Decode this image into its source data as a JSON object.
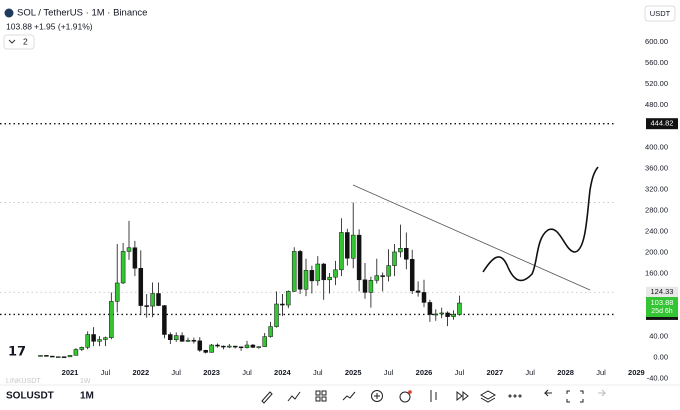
{
  "header": {
    "symbol": "SOL / TetherUS · 1M · Binance",
    "price": "103.88",
    "change": "+1.95 (+1.91%)",
    "indicators": "2",
    "currency": "USDT"
  },
  "chart_data": {
    "type": "candlestick",
    "x": [
      "2020-08",
      "2020-09",
      "2020-10",
      "2020-11",
      "2020-12",
      "2021-01",
      "2021-02",
      "2021-03",
      "2021-04",
      "2021-05",
      "2021-06",
      "2021-07",
      "2021-08",
      "2021-09",
      "2021-10",
      "2021-11",
      "2021-12",
      "2022-01",
      "2022-02",
      "2022-03",
      "2022-04",
      "2022-05",
      "2022-06",
      "2022-07",
      "2022-08",
      "2022-09",
      "2022-10",
      "2022-11",
      "2022-12",
      "2023-01",
      "2023-02",
      "2023-03",
      "2023-04",
      "2023-05",
      "2023-06",
      "2023-07",
      "2023-08",
      "2023-09",
      "2023-10",
      "2023-11",
      "2023-12",
      "2024-01",
      "2024-02",
      "2024-03",
      "2024-04",
      "2024-05",
      "2024-06",
      "2024-07",
      "2024-08",
      "2024-09",
      "2024-10",
      "2024-11",
      "2024-12",
      "2025-01",
      "2025-02",
      "2025-03",
      "2025-04",
      "2025-05",
      "2025-06",
      "2025-07",
      "2025-08",
      "2025-09",
      "2025-10",
      "2025-11",
      "2025-12",
      "2026-01",
      "2026-02",
      "2026-03",
      "2026-04",
      "2026-05",
      "2026-06",
      "2026-07"
    ],
    "open": [
      2.8,
      4.3,
      3.0,
      1.7,
      1.8,
      1.5,
      4.3,
      15.5,
      19.6,
      44,
      31,
      34.5,
      38,
      107,
      142,
      202,
      209,
      170,
      99,
      98,
      122,
      99,
      44,
      34,
      42,
      31,
      33,
      32,
      14,
      10,
      24,
      22,
      21,
      22,
      20.6,
      19,
      24,
      19.5,
      21,
      40,
      59,
      102,
      100,
      126,
      202,
      130,
      166,
      146,
      178,
      148,
      153,
      167,
      238,
      189,
      233,
      148,
      124,
      147,
      156,
      155,
      175,
      201,
      208,
      187,
      127,
      124,
      105,
      82,
      83,
      85,
      78,
      82
    ],
    "high": [
      4.9,
      4.8,
      3.2,
      2.4,
      2.3,
      4.7,
      18,
      21,
      50,
      58,
      41,
      40,
      124,
      216,
      218,
      260,
      222,
      204,
      121,
      143,
      143,
      100,
      48,
      48,
      48,
      38,
      38,
      39,
      15,
      26,
      27,
      23,
      26,
      22.5,
      20.7,
      32,
      26,
      21.5,
      47,
      68,
      126,
      121,
      128,
      210,
      205,
      188,
      175,
      193,
      180,
      161,
      184,
      265,
      245,
      295,
      244,
      180,
      154,
      188,
      162,
      206,
      216,
      253,
      238,
      205,
      145,
      148,
      110,
      92,
      95,
      88,
      90,
      118
    ],
    "low": [
      2.6,
      2.4,
      1.2,
      1.0,
      1.4,
      1.5,
      4.2,
      12.5,
      16,
      22,
      22,
      22,
      35,
      86,
      140,
      186,
      155,
      81,
      76,
      77,
      98,
      37,
      26,
      30,
      30,
      30,
      27,
      11,
      8,
      9.6,
      19,
      15.8,
      18,
      17.5,
      12.8,
      17.5,
      18,
      17,
      21,
      38,
      57,
      79,
      94,
      125,
      121,
      117,
      122,
      137,
      110,
      122,
      138,
      155,
      175,
      170,
      126,
      112,
      95,
      141,
      126,
      145,
      155,
      191,
      168,
      121,
      116,
      96,
      68,
      70,
      75,
      60,
      72,
      80
    ],
    "close": [
      4.3,
      3.0,
      1.7,
      1.8,
      1.5,
      4.3,
      15.5,
      19.6,
      44,
      31,
      34.5,
      38,
      107,
      142,
      202,
      209,
      170,
      99,
      98,
      122,
      99,
      44,
      34,
      42,
      31,
      33,
      32,
      14,
      10,
      24,
      22,
      21,
      22,
      20.6,
      19,
      24,
      19.5,
      21,
      40,
      59,
      102,
      100,
      126,
      202,
      130,
      166,
      146,
      178,
      148,
      153,
      167,
      238,
      189,
      233,
      148,
      124,
      147,
      156,
      155,
      175,
      201,
      208,
      187,
      127,
      124,
      105,
      82,
      83,
      85,
      78,
      82,
      103.88
    ],
    "up_color": "#34c434",
    "down_color": "#111111",
    "ylim": [
      -52,
      680
    ],
    "yticks": [
      {
        "value": 600,
        "label": "600.00"
      },
      {
        "value": 560,
        "label": "560.00"
      },
      {
        "value": 520,
        "label": "520.00"
      },
      {
        "value": 480,
        "label": "480.00"
      },
      {
        "value": 400,
        "label": "400.00"
      },
      {
        "value": 360,
        "label": "360.00"
      },
      {
        "value": 320,
        "label": "320.00"
      },
      {
        "value": 280,
        "label": "280.00"
      },
      {
        "value": 240,
        "label": "240.00"
      },
      {
        "value": 200,
        "label": "200.00"
      },
      {
        "value": 160,
        "label": "160.00"
      },
      {
        "value": 40,
        "label": "40.00"
      },
      {
        "value": 0,
        "label": "0.00"
      },
      {
        "value": -40,
        "label": "-40.00"
      }
    ],
    "xticks": [
      {
        "value": "2021-01",
        "label": "2021"
      },
      {
        "value": "2021-07",
        "label": "Jul"
      },
      {
        "value": "2022-01",
        "label": "2022"
      },
      {
        "value": "2022-07",
        "label": "Jul"
      },
      {
        "value": "2023-01",
        "label": "2023"
      },
      {
        "value": "2023-07",
        "label": "Jul"
      },
      {
        "value": "2024-01",
        "label": "2024"
      },
      {
        "value": "2024-07",
        "label": "Jul"
      },
      {
        "value": "2025-01",
        "label": "2025"
      },
      {
        "value": "2025-07",
        "label": "Jul"
      },
      {
        "value": "2026-01",
        "label": "2026"
      },
      {
        "value": "2026-07",
        "label": "Jul"
      },
      {
        "value": "2027-01",
        "label": "2027"
      },
      {
        "value": "2027-07",
        "label": "Jul"
      },
      {
        "value": "2028-01",
        "label": "2028"
      },
      {
        "value": "2028-07",
        "label": "Jul"
      },
      {
        "value": "2029-01",
        "label": "2029"
      }
    ],
    "levels": [
      {
        "value": 444.82,
        "label": "444.82",
        "color": "#111111"
      },
      {
        "value": 295,
        "color": "#bbbbbb"
      },
      {
        "value": 124.33,
        "label": "124.33",
        "color": "#bbbbbb"
      },
      {
        "value": 82.19,
        "label": "82.19",
        "color": "#111111"
      }
    ],
    "last_price": {
      "value": 103.88,
      "label": "103.88",
      "countdown": "25d 6h"
    }
  },
  "footer": {
    "ghost_symbol": "LINKUSDT",
    "ghost_interval": "1W",
    "symbol": "SOLUSDT",
    "interval": "1M"
  }
}
